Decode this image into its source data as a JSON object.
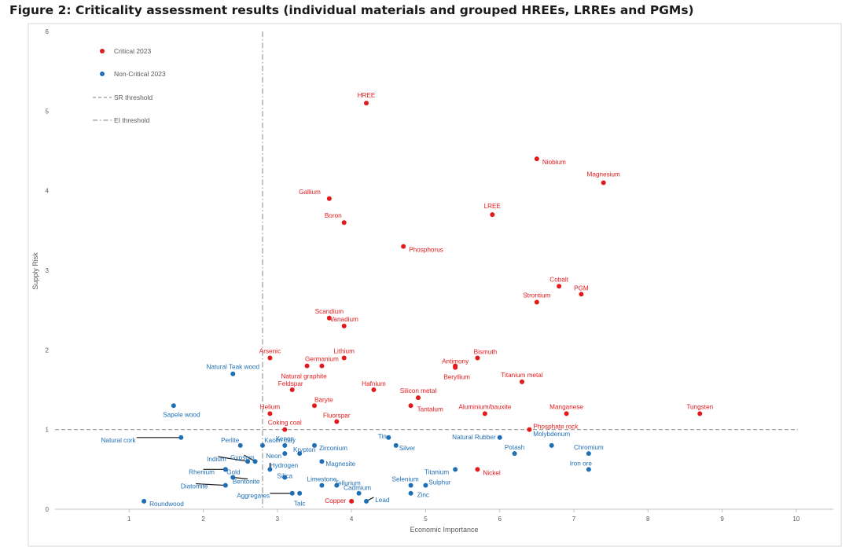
{
  "figure_title": "Figure 2: Criticality assessment results (individual materials and grouped HREEs, LRREs and PGMs)",
  "colors": {
    "critical": "#e31a1c",
    "non_critical": "#1f6fb5",
    "threshold": "#999999",
    "axis": "#bfbfbf",
    "tick_text": "#595959"
  },
  "legend": {
    "critical": "Critical 2023",
    "non_critical": "Non-Critical 2023",
    "sr_threshold": "SR threshold",
    "ei_threshold": "EI threshold"
  },
  "chart_data": {
    "type": "scatter",
    "title": "Figure 2: Criticality assessment results (individual materials and grouped HREEs, LRREs and PGMs)",
    "xlabel": "Economic Importance",
    "ylabel": "Supply Risk",
    "xlim": [
      0,
      10.5
    ],
    "ylim": [
      0,
      6
    ],
    "xticks": [
      "1",
      "2",
      "3",
      "4",
      "5",
      "6",
      "7",
      "8",
      "9",
      "10"
    ],
    "yticks": [
      "0",
      "1",
      "2",
      "3",
      "4",
      "5",
      "6"
    ],
    "thresholds": {
      "supply_risk": 1.0,
      "economic_importance": 2.8
    },
    "series": [
      {
        "name": "Critical 2023",
        "points": [
          {
            "label": "HREE",
            "x": 4.2,
            "y": 5.1
          },
          {
            "label": "Niobium",
            "x": 6.5,
            "y": 4.4
          },
          {
            "label": "Magnesium",
            "x": 7.4,
            "y": 4.1
          },
          {
            "label": "Gallium",
            "x": 3.7,
            "y": 3.9
          },
          {
            "label": "LREE",
            "x": 5.9,
            "y": 3.7
          },
          {
            "label": "Boron",
            "x": 3.9,
            "y": 3.6
          },
          {
            "label": "Phosphorus",
            "x": 4.7,
            "y": 3.3
          },
          {
            "label": "Cobalt",
            "x": 6.8,
            "y": 2.8
          },
          {
            "label": "PGM",
            "x": 7.1,
            "y": 2.7
          },
          {
            "label": "Strontium",
            "x": 6.5,
            "y": 2.6
          },
          {
            "label": "Scandium",
            "x": 3.7,
            "y": 2.4
          },
          {
            "label": "Vanadium",
            "x": 3.9,
            "y": 2.3
          },
          {
            "label": "Arsenic",
            "x": 2.9,
            "y": 1.9
          },
          {
            "label": "Lithium",
            "x": 3.9,
            "y": 1.9
          },
          {
            "label": "Bismuth",
            "x": 5.7,
            "y": 1.9
          },
          {
            "label": "Germanium",
            "x": 3.6,
            "y": 1.8
          },
          {
            "label": "Natural graphite",
            "x": 3.4,
            "y": 1.8
          },
          {
            "label": "Antimony",
            "x": 5.4,
            "y": 1.8
          },
          {
            "label": "Beryllium",
            "x": 5.4,
            "y": 1.78
          },
          {
            "label": "Titanium metal",
            "x": 6.3,
            "y": 1.6
          },
          {
            "label": "Feldspar",
            "x": 3.2,
            "y": 1.5
          },
          {
            "label": "Hafnium",
            "x": 4.3,
            "y": 1.5
          },
          {
            "label": "Silicon metal",
            "x": 4.9,
            "y": 1.4
          },
          {
            "label": "Baryte",
            "x": 3.5,
            "y": 1.3
          },
          {
            "label": "Tantalum",
            "x": 4.8,
            "y": 1.3
          },
          {
            "label": "Helium",
            "x": 2.9,
            "y": 1.2
          },
          {
            "label": "Fluorspar",
            "x": 3.8,
            "y": 1.1
          },
          {
            "label": "Aluminium/bauxite",
            "x": 5.8,
            "y": 1.2
          },
          {
            "label": "Manganese",
            "x": 6.9,
            "y": 1.2
          },
          {
            "label": "Tungsten",
            "x": 8.7,
            "y": 1.2
          },
          {
            "label": "Coking coal",
            "x": 3.1,
            "y": 1.0
          },
          {
            "label": "Phosphate rock",
            "x": 6.4,
            "y": 1.0
          },
          {
            "label": "Nickel",
            "x": 5.7,
            "y": 0.5
          },
          {
            "label": "Copper",
            "x": 4.0,
            "y": 0.1
          }
        ]
      },
      {
        "name": "Non-Critical 2023",
        "points": [
          {
            "label": "Natural Teak wood",
            "x": 2.4,
            "y": 1.7
          },
          {
            "label": "Sapele wood",
            "x": 1.6,
            "y": 1.3
          },
          {
            "label": "Natural cork",
            "x": 1.7,
            "y": 0.9
          },
          {
            "label": "Perlite",
            "x": 2.5,
            "y": 0.8
          },
          {
            "label": "Kaolin clay",
            "x": 2.8,
            "y": 0.8
          },
          {
            "label": "Xenon",
            "x": 3.1,
            "y": 0.8
          },
          {
            "label": "Krypton",
            "x": 3.3,
            "y": 0.7
          },
          {
            "label": "Zirconium",
            "x": 3.5,
            "y": 0.8
          },
          {
            "label": "Tin",
            "x": 4.5,
            "y": 0.9
          },
          {
            "label": "Silver",
            "x": 4.6,
            "y": 0.8
          },
          {
            "label": "Natural Rubber",
            "x": 6.0,
            "y": 0.9
          },
          {
            "label": "Molybdenum",
            "x": 6.7,
            "y": 0.8
          },
          {
            "label": "Potash",
            "x": 6.2,
            "y": 0.7
          },
          {
            "label": "Chromium",
            "x": 7.2,
            "y": 0.7
          },
          {
            "label": "Iron ore",
            "x": 7.2,
            "y": 0.5
          },
          {
            "label": "Indium",
            "x": 2.6,
            "y": 0.6
          },
          {
            "label": "Gypsum",
            "x": 2.7,
            "y": 0.6
          },
          {
            "label": "Neon",
            "x": 3.1,
            "y": 0.7
          },
          {
            "label": "Magnesite",
            "x": 3.6,
            "y": 0.6
          },
          {
            "label": "Rhenium",
            "x": 2.3,
            "y": 0.5
          },
          {
            "label": "Gold",
            "x": 2.3,
            "y": 0.5
          },
          {
            "label": "Hydrogen",
            "x": 2.9,
            "y": 0.5
          },
          {
            "label": "Bentonite",
            "x": 2.4,
            "y": 0.4
          },
          {
            "label": "Silica",
            "x": 3.1,
            "y": 0.4
          },
          {
            "label": "Diatomite",
            "x": 2.3,
            "y": 0.3
          },
          {
            "label": "Limestone",
            "x": 3.6,
            "y": 0.3
          },
          {
            "label": "Tellurium",
            "x": 3.8,
            "y": 0.3
          },
          {
            "label": "Selenium",
            "x": 4.8,
            "y": 0.3
          },
          {
            "label": "Titanium",
            "x": 5.4,
            "y": 0.5
          },
          {
            "label": "Sulphur",
            "x": 5.0,
            "y": 0.3
          },
          {
            "label": "Aggregates",
            "x": 3.2,
            "y": 0.2
          },
          {
            "label": "Talc",
            "x": 3.3,
            "y": 0.2
          },
          {
            "label": "Cadmium",
            "x": 4.1,
            "y": 0.2
          },
          {
            "label": "Lead",
            "x": 4.2,
            "y": 0.1
          },
          {
            "label": "Zinc",
            "x": 4.8,
            "y": 0.2
          },
          {
            "label": "Roundwood",
            "x": 1.2,
            "y": 0.1
          }
        ]
      }
    ]
  }
}
